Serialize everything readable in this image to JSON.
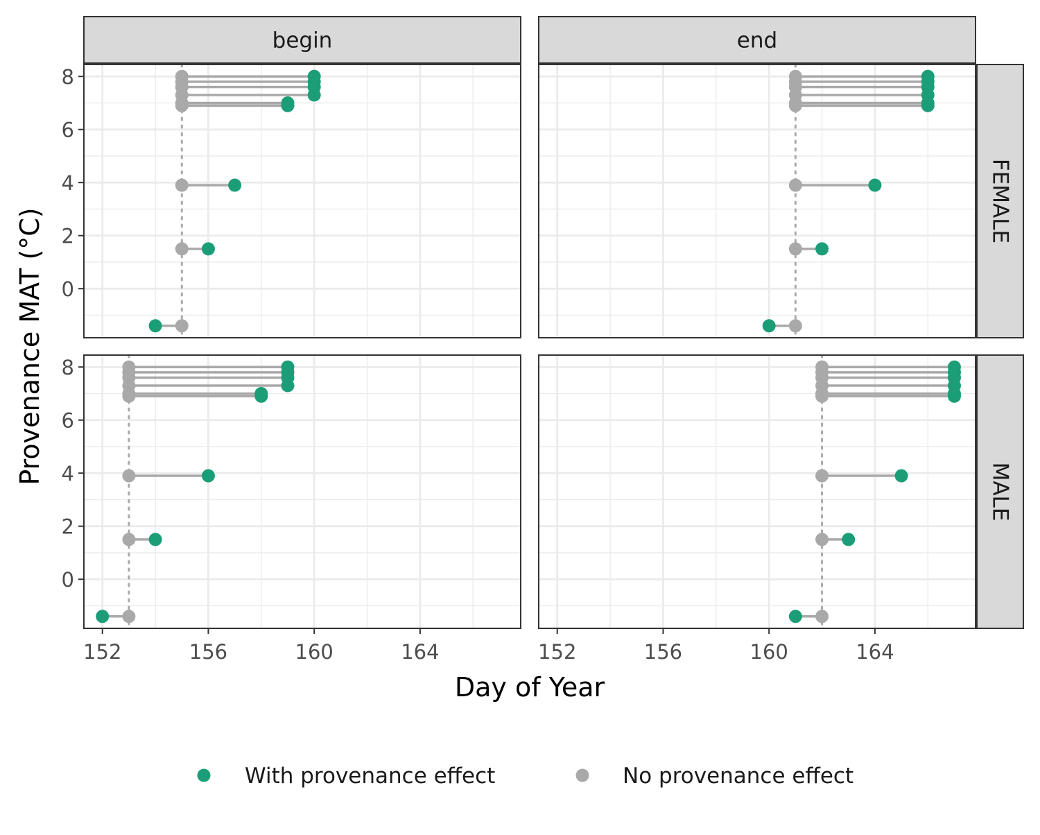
{
  "chart_data": {
    "type": "scatter",
    "subtype": "dumbbell-faceted",
    "xlabel": "Day of Year",
    "ylabel": "Provenance MAT (°C)",
    "xlim": [
      151.3,
      167.8
    ],
    "ylim": [
      -1.85,
      8.45
    ],
    "x_ticks": [
      152,
      156,
      160,
      164
    ],
    "y_ticks": [
      0,
      2,
      4,
      6,
      8
    ],
    "grid": true,
    "legend_position": "bottom",
    "facet_columns": [
      "begin",
      "end"
    ],
    "facet_rows": [
      "FEMALE",
      "MALE"
    ],
    "series": [
      {
        "key": "with",
        "name": "With provenance effect",
        "color": "#1b9e77"
      },
      {
        "key": "without",
        "name": "No provenance effect",
        "color": "#a9a9a9"
      }
    ],
    "segment_color": "#a9a9a9",
    "panels": [
      {
        "row": "FEMALE",
        "col": "begin",
        "reference_x": 155,
        "points": [
          {
            "mat": 8.0,
            "without": 155,
            "with": 160
          },
          {
            "mat": 7.8,
            "without": 155,
            "with": 160
          },
          {
            "mat": 7.6,
            "without": 155,
            "with": 160
          },
          {
            "mat": 7.3,
            "without": 155,
            "with": 160
          },
          {
            "mat": 7.0,
            "without": 155,
            "with": 159
          },
          {
            "mat": 6.9,
            "without": 155,
            "with": 159
          },
          {
            "mat": 3.9,
            "without": 155,
            "with": 157
          },
          {
            "mat": 1.5,
            "without": 155,
            "with": 156
          },
          {
            "mat": -1.4,
            "without": 155,
            "with": 154
          }
        ]
      },
      {
        "row": "FEMALE",
        "col": "end",
        "reference_x": 161,
        "points": [
          {
            "mat": 8.0,
            "without": 161,
            "with": 166
          },
          {
            "mat": 7.8,
            "without": 161,
            "with": 166
          },
          {
            "mat": 7.6,
            "without": 161,
            "with": 166
          },
          {
            "mat": 7.3,
            "without": 161,
            "with": 166
          },
          {
            "mat": 7.0,
            "without": 161,
            "with": 166
          },
          {
            "mat": 6.9,
            "without": 161,
            "with": 166
          },
          {
            "mat": 3.9,
            "without": 161,
            "with": 164
          },
          {
            "mat": 1.5,
            "without": 161,
            "with": 162
          },
          {
            "mat": -1.4,
            "without": 161,
            "with": 160
          }
        ]
      },
      {
        "row": "MALE",
        "col": "begin",
        "reference_x": 153,
        "points": [
          {
            "mat": 8.0,
            "without": 153,
            "with": 159
          },
          {
            "mat": 7.8,
            "without": 153,
            "with": 159
          },
          {
            "mat": 7.6,
            "without": 153,
            "with": 159
          },
          {
            "mat": 7.3,
            "without": 153,
            "with": 159
          },
          {
            "mat": 7.0,
            "without": 153,
            "with": 158
          },
          {
            "mat": 6.9,
            "without": 153,
            "with": 158
          },
          {
            "mat": 3.9,
            "without": 153,
            "with": 156
          },
          {
            "mat": 1.5,
            "without": 153,
            "with": 154
          },
          {
            "mat": -1.4,
            "without": 153,
            "with": 152
          }
        ]
      },
      {
        "row": "MALE",
        "col": "end",
        "reference_x": 162,
        "points": [
          {
            "mat": 8.0,
            "without": 162,
            "with": 167
          },
          {
            "mat": 7.8,
            "without": 162,
            "with": 167
          },
          {
            "mat": 7.6,
            "without": 162,
            "with": 167
          },
          {
            "mat": 7.3,
            "without": 162,
            "with": 167
          },
          {
            "mat": 7.0,
            "without": 162,
            "with": 167
          },
          {
            "mat": 6.9,
            "without": 162,
            "with": 167
          },
          {
            "mat": 3.9,
            "without": 162,
            "with": 165
          },
          {
            "mat": 1.5,
            "without": 162,
            "with": 163
          },
          {
            "mat": -1.4,
            "without": 162,
            "with": 161
          }
        ]
      }
    ]
  }
}
